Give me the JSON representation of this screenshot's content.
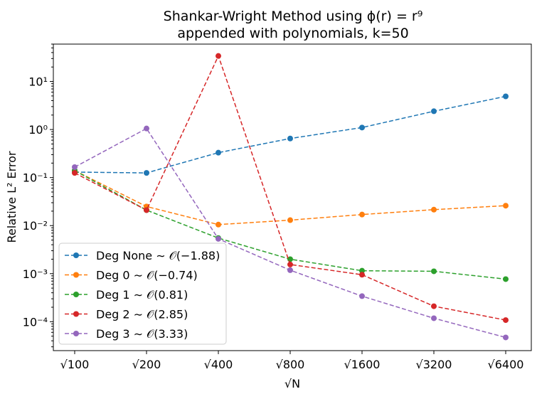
{
  "chart_data": {
    "type": "line",
    "title_line1": "Shankar-Wright Method using ϕ(r) = r⁹",
    "title_line2": "appended with polynomials, k=50",
    "xlabel": "√N",
    "ylabel": "Relative L² Error",
    "yscale": "log",
    "ylim": [
      2.5e-05,
      60
    ],
    "categories": [
      "√100",
      "√200",
      "√400",
      "√800",
      "√1600",
      "√3200",
      "√6400"
    ],
    "y_ticks": [
      {
        "value": 0.0001,
        "label": "10⁻⁴"
      },
      {
        "value": 0.001,
        "label": "10⁻³"
      },
      {
        "value": 0.01,
        "label": "10⁻²"
      },
      {
        "value": 0.1,
        "label": "10⁻¹"
      },
      {
        "value": 1,
        "label": "10⁰"
      },
      {
        "value": 10,
        "label": "10¹"
      }
    ],
    "legend_position": "lower-left",
    "series": [
      {
        "name": "Deg None ∼ 𝒪(−1.88)",
        "color": "#1f77b4",
        "values": [
          0.13,
          0.125,
          0.33,
          0.65,
          1.1,
          2.4,
          4.9
        ]
      },
      {
        "name": "Deg 0 ∼ 𝒪(−0.74)",
        "color": "#ff7f0e",
        "values": [
          0.14,
          0.025,
          0.0105,
          0.013,
          0.017,
          0.0215,
          0.026
        ]
      },
      {
        "name": "Deg 1 ∼ 𝒪(0.81)",
        "color": "#2ca02c",
        "values": [
          0.14,
          0.021,
          0.0055,
          0.002,
          0.00115,
          0.00112,
          0.00077
        ]
      },
      {
        "name": "Deg 2 ∼ 𝒪(2.85)",
        "color": "#d62728",
        "values": [
          0.125,
          0.021,
          34,
          0.00155,
          0.00095,
          0.00021,
          0.000108
        ]
      },
      {
        "name": "Deg 3 ∼ 𝒪(3.33)",
        "color": "#9467bd",
        "values": [
          0.165,
          1.05,
          0.0053,
          0.00118,
          0.00034,
          0.000118,
          4.7e-05
        ]
      }
    ]
  }
}
